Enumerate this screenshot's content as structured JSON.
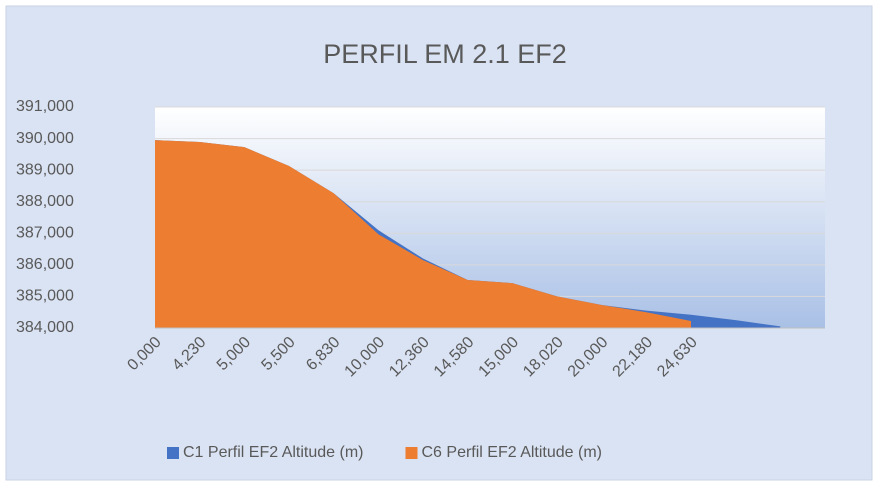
{
  "chart_data": {
    "type": "area",
    "title": "PERFIL EM 2.1 EF2",
    "categories": [
      "0,000",
      "4,230",
      "5,000",
      "5,500",
      "6,830",
      "10,000",
      "12,360",
      "14,580",
      "15,000",
      "18,020",
      "20,000",
      "22,180",
      "24,630",
      null,
      null
    ],
    "series": [
      {
        "name": "C1 Perfil EF2 Altitude (m)",
        "color": "#4472c4",
        "values": [
          389.95,
          389.89,
          389.73,
          389.13,
          388.27,
          387.1,
          386.2,
          385.52,
          385.42,
          385.0,
          384.73,
          384.55,
          384.42,
          384.25,
          384.05
        ]
      },
      {
        "name": "C6 Perfil EF2 Altitude (m)",
        "color": "#ed7d31",
        "values": [
          389.95,
          389.89,
          389.73,
          389.13,
          388.27,
          386.97,
          386.15,
          385.52,
          385.42,
          385.0,
          384.73,
          384.5,
          384.22,
          null,
          null
        ]
      }
    ],
    "ylim": [
      384,
      391
    ],
    "yticks": [
      {
        "value": 384,
        "label": "384,000"
      },
      {
        "value": 385,
        "label": "385,000"
      },
      {
        "value": 386,
        "label": "386,000"
      },
      {
        "value": 387,
        "label": "387,000"
      },
      {
        "value": 388,
        "label": "388,000"
      },
      {
        "value": 389,
        "label": "389,000"
      },
      {
        "value": 390,
        "label": "390,000"
      },
      {
        "value": 391,
        "label": "391,000"
      }
    ],
    "grid": true,
    "legend": "bottom"
  }
}
